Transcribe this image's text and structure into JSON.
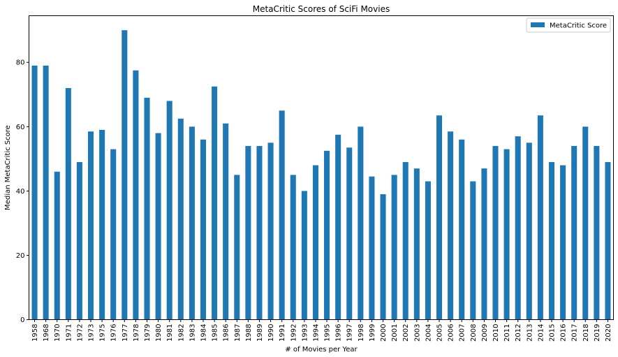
{
  "chart_data": {
    "type": "bar",
    "title": "MetaCritic Scores of SciFi Movies",
    "xlabel": "# of Movies per Year",
    "ylabel": "Median MetaCritic Score",
    "ylim": [
      0,
      94.5
    ],
    "yticks": [
      0,
      20,
      40,
      60,
      80
    ],
    "grid": false,
    "legend_position": "top-right",
    "categories": [
      "1958",
      "1968",
      "1970",
      "1971",
      "1972",
      "1973",
      "1975",
      "1976",
      "1977",
      "1978",
      "1979",
      "1980",
      "1981",
      "1982",
      "1983",
      "1984",
      "1985",
      "1986",
      "1987",
      "1988",
      "1989",
      "1990",
      "1991",
      "1992",
      "1993",
      "1994",
      "1995",
      "1996",
      "1997",
      "1998",
      "1999",
      "2000",
      "2001",
      "2002",
      "2003",
      "2004",
      "2005",
      "2006",
      "2007",
      "2008",
      "2009",
      "2010",
      "2011",
      "2012",
      "2013",
      "2014",
      "2015",
      "2016",
      "2017",
      "2018",
      "2019",
      "2020"
    ],
    "series": [
      {
        "name": "MetaCritic Score",
        "color": "#1f77b4",
        "values": [
          79,
          79,
          46,
          72,
          49,
          58.5,
          59,
          53,
          90,
          77.5,
          69,
          58,
          68,
          62.5,
          60,
          56,
          72.5,
          61,
          45,
          54,
          54,
          55,
          65,
          45,
          40,
          48,
          52.5,
          57.5,
          53.5,
          60,
          44.5,
          39,
          45,
          49,
          47,
          43,
          63.5,
          58.5,
          56,
          43,
          47,
          54,
          53,
          57,
          55,
          63.5,
          49,
          48,
          54,
          60,
          54,
          49
        ]
      }
    ]
  }
}
